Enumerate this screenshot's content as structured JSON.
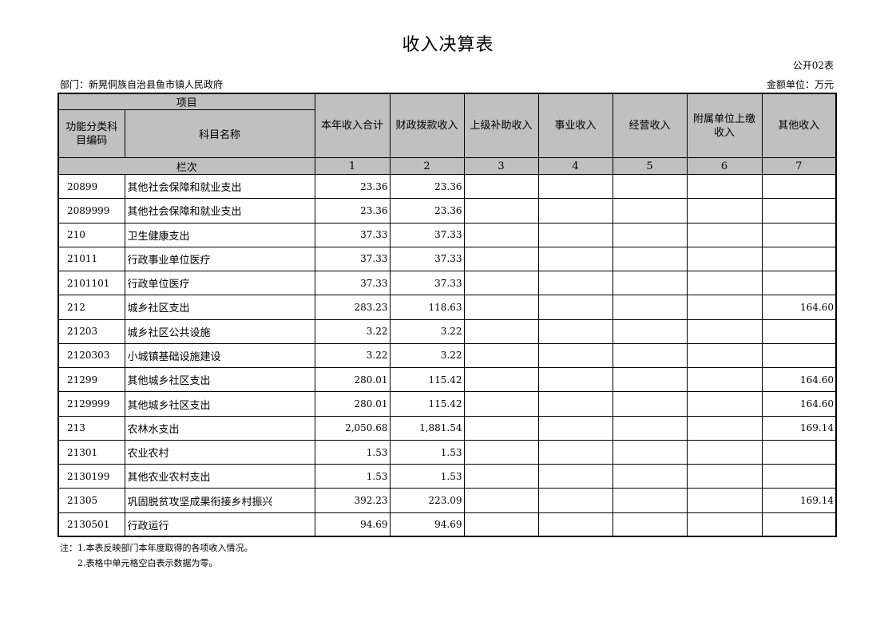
{
  "title": "收入决算表",
  "table_code": "公开02表",
  "department": "部门：新晃侗族自治县鱼市镇人民政府",
  "unit": "金额单位：万元",
  "headers": {
    "item": "项目",
    "code": "功能分类科目编码",
    "name": "科目名称",
    "cols": [
      "本年收入合计",
      "财政拨款收入",
      "上级补助收入",
      "事业收入",
      "经营收入",
      "附属单位上缴收入",
      "其他收入"
    ],
    "seq_label": "栏次",
    "seq": [
      "1",
      "2",
      "3",
      "4",
      "5",
      "6",
      "7"
    ]
  },
  "rows": [
    {
      "code": "20899",
      "name": "其他社会保障和就业支出",
      "v": [
        "23.36",
        "23.36",
        "",
        "",
        "",
        "",
        ""
      ]
    },
    {
      "code": "2089999",
      "name": "其他社会保障和就业支出",
      "v": [
        "23.36",
        "23.36",
        "",
        "",
        "",
        "",
        ""
      ]
    },
    {
      "code": "210",
      "name": "卫生健康支出",
      "v": [
        "37.33",
        "37.33",
        "",
        "",
        "",
        "",
        ""
      ]
    },
    {
      "code": "21011",
      "name": "行政事业单位医疗",
      "v": [
        "37.33",
        "37.33",
        "",
        "",
        "",
        "",
        ""
      ]
    },
    {
      "code": "2101101",
      "name": "行政单位医疗",
      "v": [
        "37.33",
        "37.33",
        "",
        "",
        "",
        "",
        ""
      ]
    },
    {
      "code": "212",
      "name": "城乡社区支出",
      "v": [
        "283.23",
        "118.63",
        "",
        "",
        "",
        "",
        "164.60"
      ]
    },
    {
      "code": "21203",
      "name": "城乡社区公共设施",
      "v": [
        "3.22",
        "3.22",
        "",
        "",
        "",
        "",
        ""
      ]
    },
    {
      "code": "2120303",
      "name": "小城镇基础设施建设",
      "v": [
        "3.22",
        "3.22",
        "",
        "",
        "",
        "",
        ""
      ]
    },
    {
      "code": "21299",
      "name": "其他城乡社区支出",
      "v": [
        "280.01",
        "115.42",
        "",
        "",
        "",
        "",
        "164.60"
      ]
    },
    {
      "code": "2129999",
      "name": "其他城乡社区支出",
      "v": [
        "280.01",
        "115.42",
        "",
        "",
        "",
        "",
        "164.60"
      ]
    },
    {
      "code": "213",
      "name": "农林水支出",
      "v": [
        "2,050.68",
        "1,881.54",
        "",
        "",
        "",
        "",
        "169.14"
      ]
    },
    {
      "code": "21301",
      "name": "农业农村",
      "v": [
        "1.53",
        "1.53",
        "",
        "",
        "",
        "",
        ""
      ]
    },
    {
      "code": "2130199",
      "name": "其他农业农村支出",
      "v": [
        "1.53",
        "1.53",
        "",
        "",
        "",
        "",
        ""
      ]
    },
    {
      "code": "21305",
      "name": "巩固脱贫攻坚成果衔接乡村振兴",
      "v": [
        "392.23",
        "223.09",
        "",
        "",
        "",
        "",
        "169.14"
      ]
    },
    {
      "code": "2130501",
      "name": "行政运行",
      "v": [
        "94.69",
        "94.69",
        "",
        "",
        "",
        "",
        ""
      ]
    }
  ],
  "notes": [
    "注：1.本表反映部门本年度取得的各项收入情况。",
    "2.表格中单元格空白表示数据为零。"
  ]
}
